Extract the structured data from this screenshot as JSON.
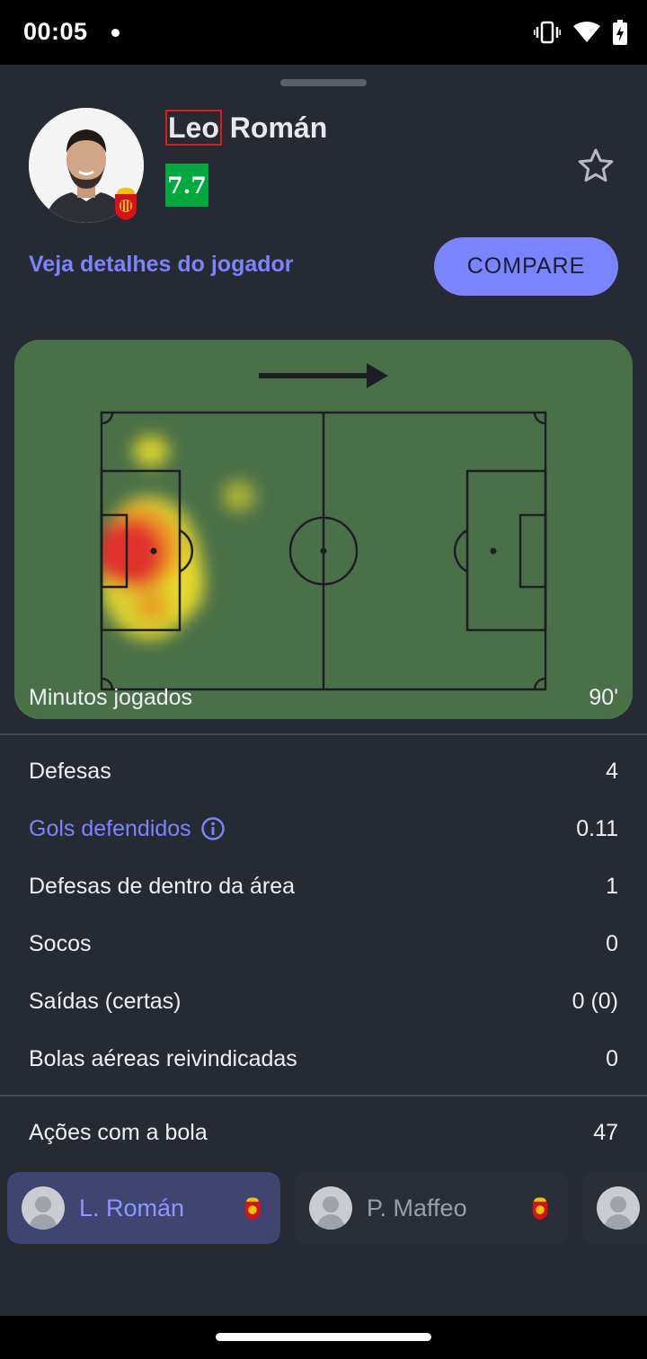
{
  "status_bar": {
    "time": "00:05",
    "icons": [
      "notification-dot",
      "vibrate-icon",
      "wifi-icon",
      "battery-charging-icon"
    ]
  },
  "player": {
    "first_name": "Leo",
    "last_name": "Román",
    "rating": "7.7",
    "rating_color": "#00a83e",
    "team_badge": "rcd-mallorca-badge"
  },
  "actions": {
    "details_link": "Veja detalhes do jogador",
    "compare_label": "COMPARE"
  },
  "heatmap": {
    "direction": "attacking-right",
    "pitch_color": "#4a7048"
  },
  "stats": {
    "minutes": {
      "label": "Minutos jogados",
      "value": "90'"
    },
    "saves": {
      "label": "Defesas",
      "value": "4"
    },
    "goals_prevented": {
      "label": "Gols defendidos",
      "value": "0.11"
    },
    "saves_inside_box": {
      "label": "Defesas de dentro da área",
      "value": "1"
    },
    "punches": {
      "label": "Socos",
      "value": "0"
    },
    "runs_out": {
      "label": "Saídas (certas)",
      "value": "0 (0)"
    },
    "high_claims": {
      "label": "Bolas aéreas reivindicadas",
      "value": "0"
    },
    "touches": {
      "label": "Ações com a bola",
      "value": "47"
    }
  },
  "player_tabs": [
    {
      "name": "L. Román",
      "active": true
    },
    {
      "name": "P. Maffeo",
      "active": false
    },
    {
      "name": "",
      "active": false
    }
  ],
  "colors": {
    "accent": "#7a84ff",
    "background": "#262a33"
  }
}
